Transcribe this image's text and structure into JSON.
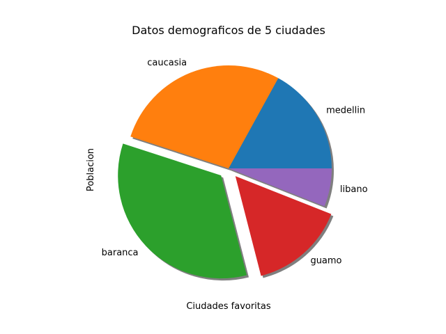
{
  "chart_data": {
    "type": "pie",
    "title": "Datos demograficos de 5 ciudades",
    "xlabel": "Ciudades favoritas",
    "ylabel": "Poblacion",
    "categories": [
      "medellin",
      "caucasia",
      "baranca",
      "guamo",
      "libano"
    ],
    "values": [
      17,
      28,
      34,
      15,
      6
    ],
    "colors": [
      "#1f77b4",
      "#ff7f0e",
      "#2ca02c",
      "#d62728",
      "#9467bd"
    ],
    "explode": [
      0,
      0,
      0.1,
      0.1,
      0
    ],
    "shadow": true,
    "start_angle": 0,
    "direction": "counterclockwise",
    "grid": false,
    "legend": false
  }
}
